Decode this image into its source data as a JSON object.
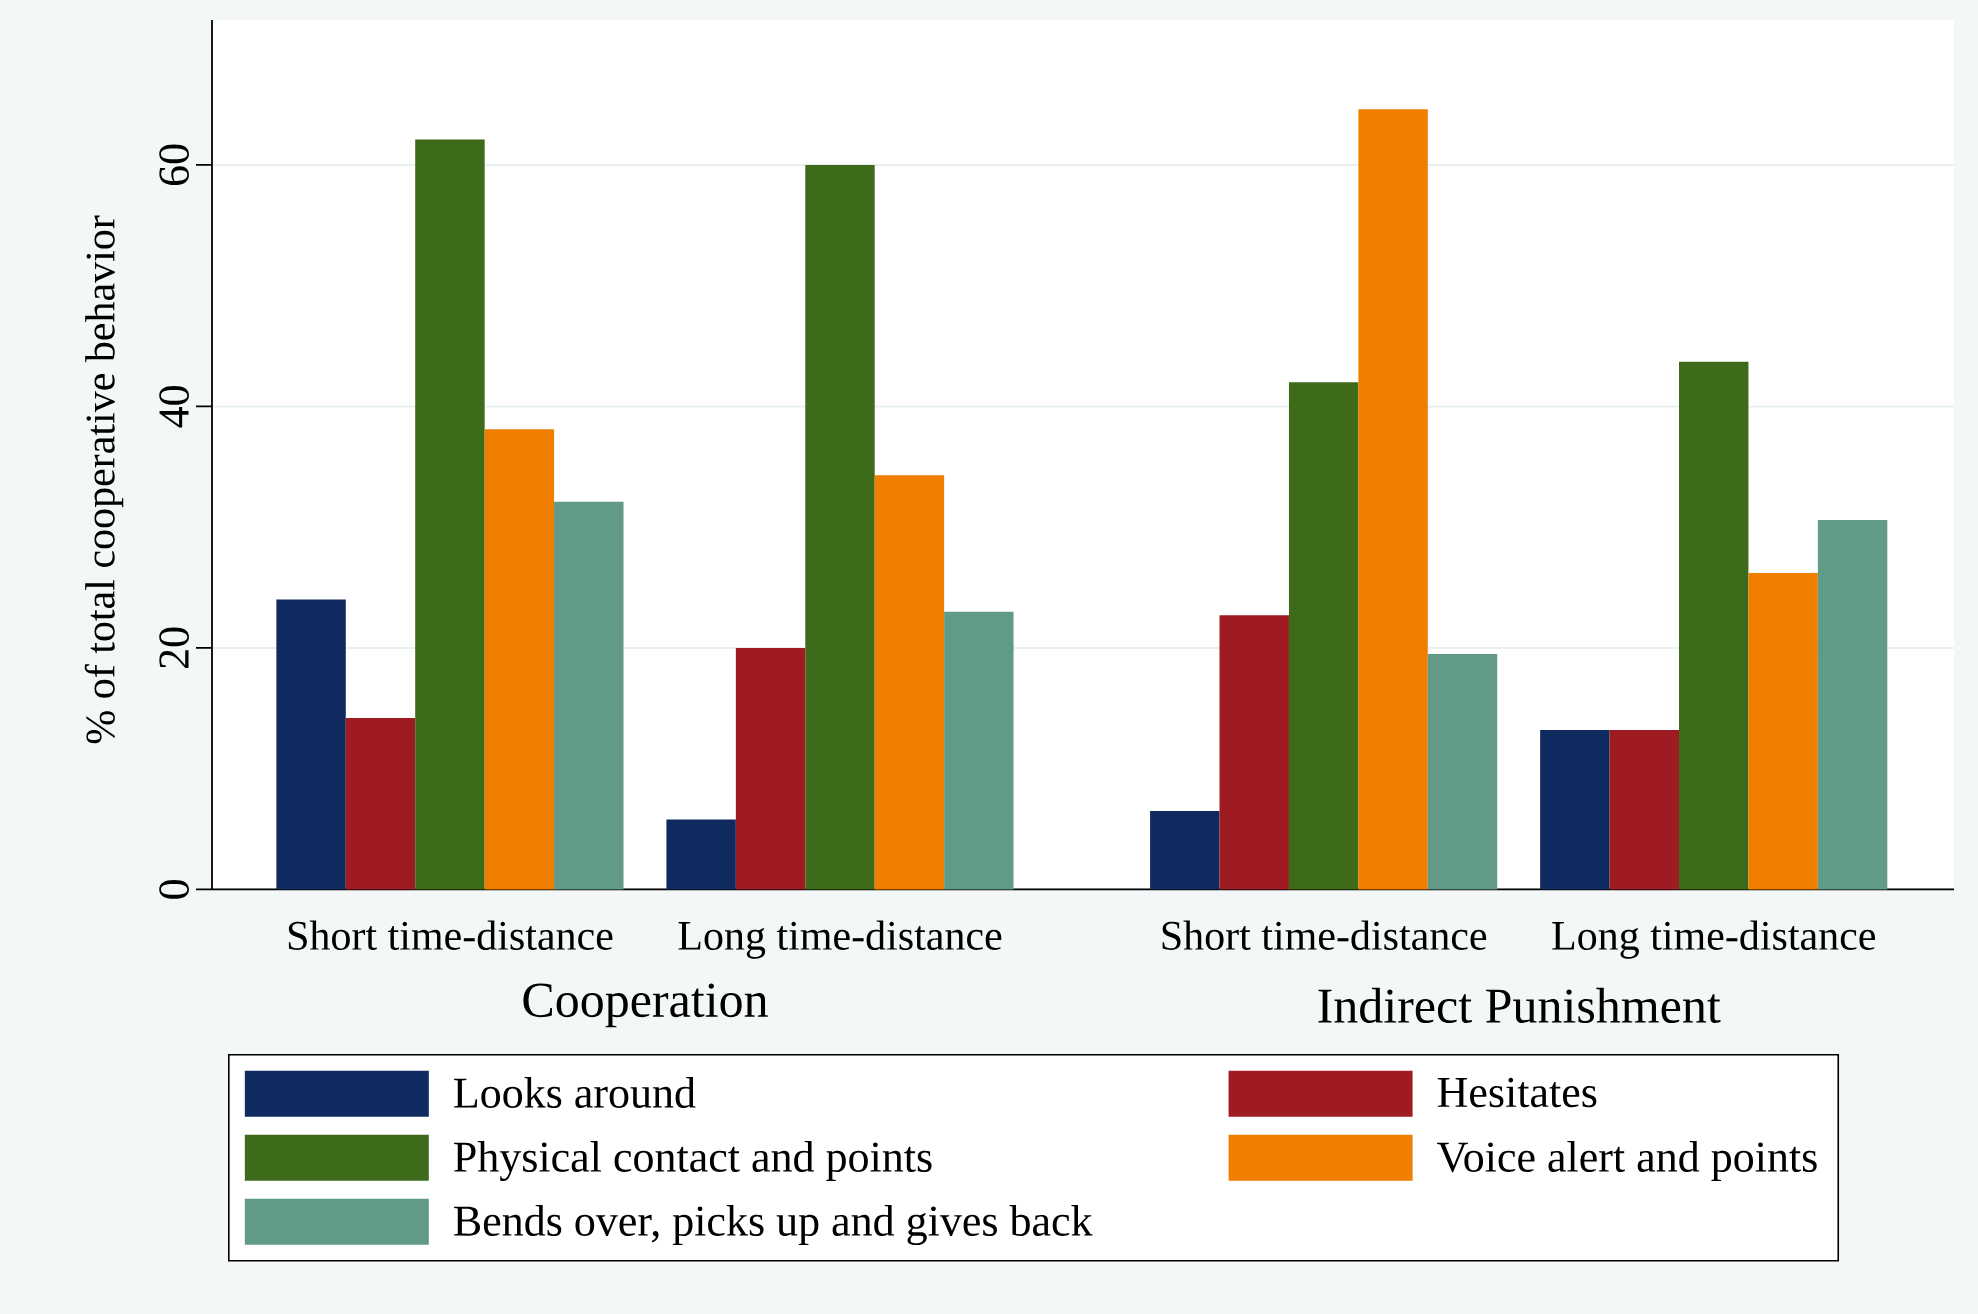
{
  "chart_data": {
    "type": "bar",
    "ylabel": "% of total cooperative behavior",
    "categories": [
      "Short time-distance",
      "Long time-distance",
      "Short time-distance",
      "Long time-distance"
    ],
    "annotations": [
      "Cooperation",
      "Indirect Punishment"
    ],
    "series": [
      {
        "name": "Looks around",
        "color": "#0f2a5f",
        "values": [
          24.0,
          5.8,
          6.5,
          13.2
        ]
      },
      {
        "name": "Hesitates",
        "color": "#9e1b21",
        "values": [
          14.2,
          20.0,
          22.7,
          13.2
        ]
      },
      {
        "name": "Physical contact and points",
        "color": "#3d6b19",
        "values": [
          62.1,
          60.0,
          42.0,
          43.7
        ]
      },
      {
        "name": "Voice alert and points",
        "color": "#f07f00",
        "values": [
          38.1,
          34.3,
          64.6,
          26.2
        ]
      },
      {
        "name": "Bends over, picks up and gives back",
        "color": "#629a88",
        "values": [
          32.1,
          23.0,
          19.5,
          30.6
        ]
      }
    ],
    "ylim": [
      0,
      72
    ],
    "yticks": [
      0,
      20,
      40,
      60
    ],
    "grid": "y",
    "legend": "bottom"
  }
}
